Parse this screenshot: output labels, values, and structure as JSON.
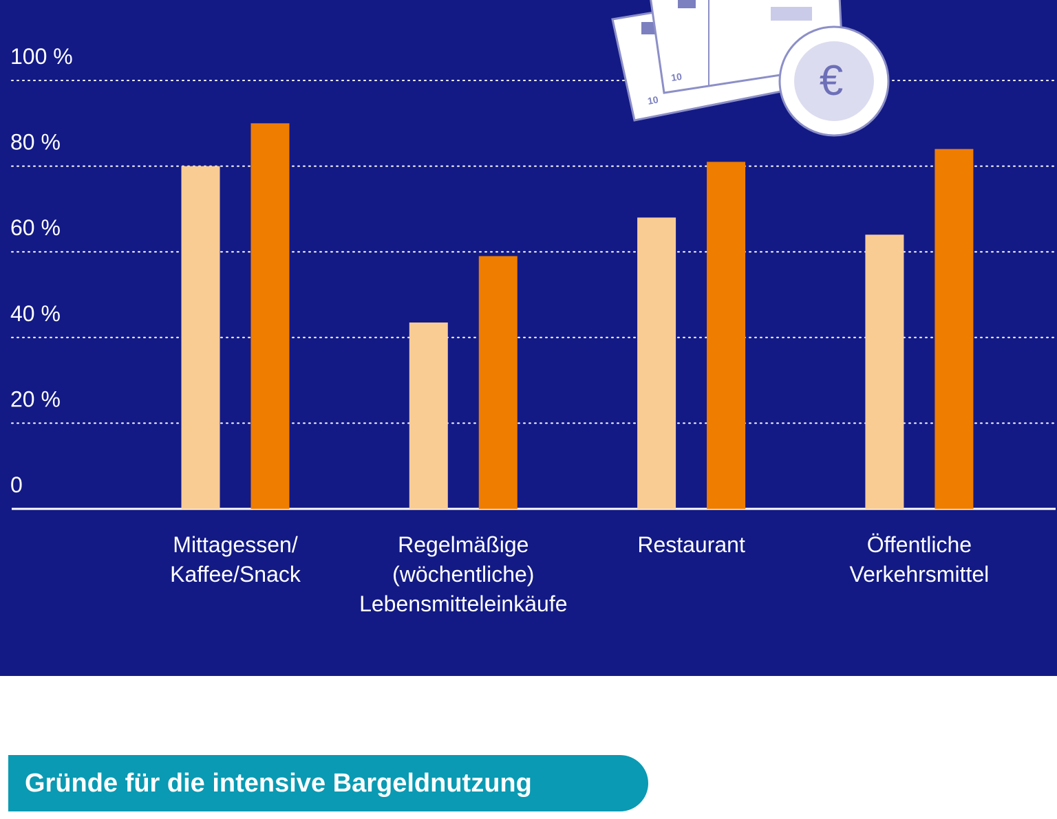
{
  "chart_data": {
    "type": "bar",
    "categories": [
      "Mittagessen/\nKaffee/Snack",
      "Regelmäßige\n(wöchentliche)\nLebensmitteleinkäufe",
      "Restaurant",
      "Öffentliche\nVerkehrsmittel"
    ],
    "series": [
      {
        "color": "#f9cc94",
        "values": [
          80,
          43.5,
          68,
          64
        ]
      },
      {
        "color": "#ef7d00",
        "values": [
          90,
          59,
          81,
          84
        ]
      }
    ],
    "ylim": [
      0,
      100
    ],
    "yticks": [
      0,
      {
        "value": 20,
        "label": "20 %"
      },
      {
        "value": 40,
        "label": "40 %"
      },
      {
        "value": 60,
        "label": "60 %"
      },
      {
        "value": 80,
        "label": "80 %"
      },
      {
        "value": 100,
        "label": "100 %"
      }
    ],
    "grid": true
  },
  "illustration": {
    "coin_symbol": "€",
    "note_labels": [
      "10",
      "10"
    ]
  },
  "section_heading": "Gründe für die intensive Bargeldnutzung"
}
